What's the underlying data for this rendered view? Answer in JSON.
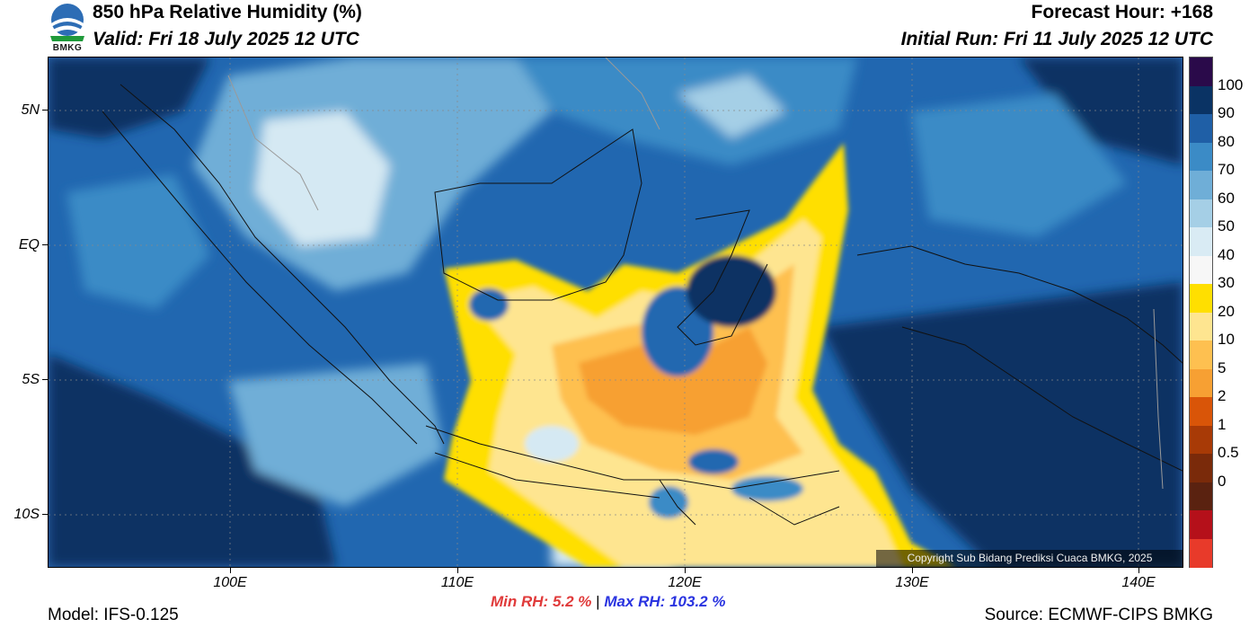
{
  "header": {
    "title": "850 hPa Relative Humidity (%)",
    "valid": "Valid: Fri 18 July 2025 12 UTC",
    "forecast_hour": "Forecast Hour: +168",
    "initial_run": "Initial Run: Fri 11 July 2025 12 UTC",
    "logo_text": "BMKG"
  },
  "map": {
    "lat_labels": [
      "5N",
      "EQ",
      "5S",
      "10S"
    ],
    "lon_labels": [
      "100E",
      "110E",
      "120E",
      "130E",
      "140E"
    ],
    "copyright": "Copyright Sub Bidang Prediksi Cuaca BMKG, 2025",
    "colors": {
      "very_humid": "#0a3364",
      "humid": "#2167b0",
      "moist": "#3b8bc6",
      "mid": "#6faed7",
      "light": "#a5cfe6",
      "pale": "#d5e9f3",
      "dry40": "#ffdf00",
      "dry30": "#fee590",
      "dry20": "#fec050",
      "dry10": "#f7a033"
    }
  },
  "colorbar": {
    "labels": [
      "100",
      "90",
      "80",
      "70",
      "60",
      "50",
      "40",
      "30",
      "20",
      "10",
      "5",
      "2",
      "1",
      "0.5",
      "0"
    ],
    "colors": [
      "#2a0a4a",
      "#0a3364",
      "#1f5fa6",
      "#3b8bc6",
      "#6faed7",
      "#a5cfe6",
      "#d9ebf4",
      "#f7f7f7",
      "#ffdf00",
      "#fee590",
      "#fec050",
      "#f7a033",
      "#d95508",
      "#a83a06",
      "#7a2a0a",
      "#5a2210",
      "#b5101a",
      "#e83a2a"
    ]
  },
  "footer": {
    "model": "Model: IFS-0.125",
    "source": "Source: ECMWF-CIPS BMKG",
    "min_label": "Min RH:",
    "min_value": "5.2 %",
    "separator": "|",
    "max_label": "Max RH:",
    "max_value": "103.2 %",
    "min_color": "#e03a3a",
    "max_color": "#2a34e0"
  }
}
